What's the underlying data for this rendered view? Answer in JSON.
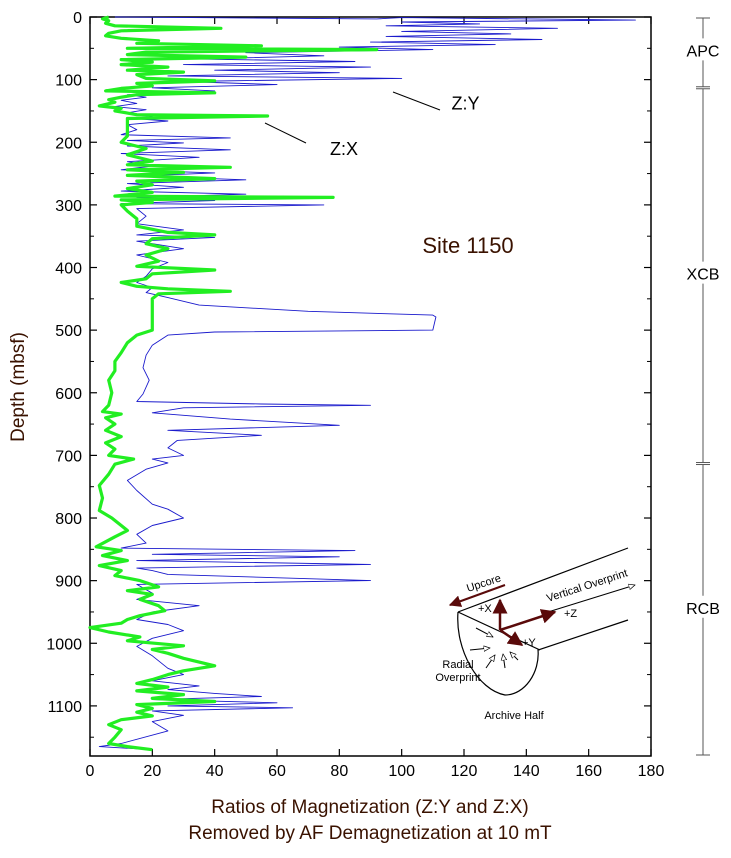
{
  "chart_data": {
    "type": "line",
    "title": "",
    "xlabel": [
      "Ratios of Magnetization (Z:Y and Z:X)",
      "Removed by AF Demagnetization at 10 mT"
    ],
    "ylabel": "Depth (mbsf)",
    "xlim": [
      0,
      180
    ],
    "ylim": [
      0,
      1180
    ],
    "y_inverted": true,
    "xticks": [
      0,
      20,
      40,
      60,
      80,
      100,
      120,
      140,
      160,
      180
    ],
    "yticks": [
      0,
      100,
      200,
      300,
      400,
      500,
      600,
      700,
      800,
      900,
      1000,
      1100
    ],
    "grid": false,
    "site_label": "Site 1150",
    "series": [
      {
        "name": "Z:Y",
        "color": "#1a1acc",
        "points": [
          [
            8,
            0
          ],
          [
            92,
            3
          ],
          [
            100,
            1
          ],
          [
            175,
            5
          ],
          [
            100,
            8
          ],
          [
            125,
            11
          ],
          [
            95,
            14
          ],
          [
            150,
            18
          ],
          [
            100,
            23
          ],
          [
            135,
            27
          ],
          [
            95,
            31
          ],
          [
            145,
            36
          ],
          [
            90,
            40
          ],
          [
            130,
            44
          ],
          [
            80,
            48
          ],
          [
            110,
            52
          ],
          [
            50,
            57
          ],
          [
            75,
            62
          ],
          [
            35,
            67
          ],
          [
            85,
            71
          ],
          [
            30,
            76
          ],
          [
            90,
            80
          ],
          [
            40,
            85
          ],
          [
            80,
            89
          ],
          [
            25,
            94
          ],
          [
            100,
            98
          ],
          [
            30,
            103
          ],
          [
            60,
            108
          ],
          [
            20,
            113
          ],
          [
            40,
            118
          ],
          [
            12,
            124
          ],
          [
            18,
            128
          ],
          [
            10,
            133
          ],
          [
            15,
            138
          ],
          [
            8,
            143
          ],
          [
            18,
            148
          ],
          [
            12,
            153
          ],
          [
            20,
            158
          ],
          [
            14,
            162
          ],
          [
            25,
            166
          ],
          [
            12,
            172
          ],
          [
            15,
            180
          ],
          [
            10,
            188
          ],
          [
            45,
            193
          ],
          [
            12,
            197
          ],
          [
            30,
            201
          ],
          [
            12,
            206
          ],
          [
            45,
            212
          ],
          [
            10,
            218
          ],
          [
            35,
            224
          ],
          [
            12,
            231
          ],
          [
            20,
            238
          ],
          [
            10,
            244
          ],
          [
            40,
            249
          ],
          [
            15,
            254
          ],
          [
            50,
            260
          ],
          [
            12,
            266
          ],
          [
            30,
            272
          ],
          [
            10,
            278
          ],
          [
            50,
            283
          ],
          [
            15,
            288
          ],
          [
            40,
            293
          ],
          [
            10,
            298
          ],
          [
            75,
            300
          ],
          [
            15,
            306
          ],
          [
            18,
            318
          ],
          [
            15,
            330
          ],
          [
            30,
            340
          ],
          [
            15,
            348
          ],
          [
            40,
            352
          ],
          [
            15,
            358
          ],
          [
            30,
            370
          ],
          [
            15,
            380
          ],
          [
            25,
            392
          ],
          [
            20,
            402
          ],
          [
            18,
            414
          ],
          [
            15,
            424
          ],
          [
            20,
            432
          ],
          [
            18,
            440
          ],
          [
            25,
            448
          ],
          [
            35,
            460
          ],
          [
            70,
            470
          ],
          [
            110,
            476
          ],
          [
            111,
            479
          ],
          [
            110,
            500
          ],
          [
            40,
            503
          ],
          [
            25,
            508
          ],
          [
            20,
            524
          ],
          [
            18,
            540
          ],
          [
            17,
            560
          ],
          [
            19,
            580
          ],
          [
            17,
            602
          ],
          [
            15,
            614
          ],
          [
            55,
            618
          ],
          [
            90,
            620
          ],
          [
            30,
            624
          ],
          [
            20,
            632
          ],
          [
            45,
            642
          ],
          [
            80,
            652
          ],
          [
            25,
            660
          ],
          [
            55,
            668
          ],
          [
            28,
            676
          ],
          [
            25,
            688
          ],
          [
            30,
            700
          ],
          [
            20,
            706
          ],
          [
            25,
            712
          ],
          [
            18,
            722
          ],
          [
            12,
            740
          ],
          [
            15,
            756
          ],
          [
            20,
            778
          ],
          [
            25,
            786
          ],
          [
            30,
            800
          ],
          [
            20,
            812
          ],
          [
            15,
            826
          ],
          [
            18,
            840
          ],
          [
            10,
            848
          ],
          [
            85,
            852
          ],
          [
            20,
            858
          ],
          [
            80,
            862
          ],
          [
            15,
            868
          ],
          [
            90,
            874
          ],
          [
            15,
            880
          ],
          [
            20,
            884
          ],
          [
            25,
            890
          ],
          [
            90,
            900
          ],
          [
            15,
            906
          ],
          [
            20,
            920
          ],
          [
            15,
            930
          ],
          [
            35,
            940
          ],
          [
            20,
            950
          ],
          [
            15,
            962
          ],
          [
            25,
            970
          ],
          [
            30,
            980
          ],
          [
            20,
            992
          ],
          [
            15,
            1005
          ],
          [
            20,
            1020
          ],
          [
            25,
            1040
          ],
          [
            30,
            1050
          ],
          [
            20,
            1060
          ],
          [
            35,
            1068
          ],
          [
            25,
            1074
          ],
          [
            40,
            1080
          ],
          [
            55,
            1085
          ],
          [
            20,
            1090
          ],
          [
            60,
            1095
          ],
          [
            25,
            1100
          ],
          [
            65,
            1103
          ],
          [
            20,
            1108
          ],
          [
            30,
            1115
          ],
          [
            20,
            1125
          ],
          [
            25,
            1140
          ],
          [
            10,
            1160
          ],
          [
            3,
            1165
          ],
          [
            20,
            1170
          ]
        ]
      },
      {
        "name": "Z:X",
        "color": "#22ee22",
        "points": [
          [
            6,
            0
          ],
          [
            4,
            3
          ],
          [
            6,
            6
          ],
          [
            5,
            10
          ],
          [
            8,
            14
          ],
          [
            42,
            18
          ],
          [
            10,
            22
          ],
          [
            6,
            26
          ],
          [
            5,
            30
          ],
          [
            10,
            34
          ],
          [
            22,
            38
          ],
          [
            15,
            42
          ],
          [
            55,
            46
          ],
          [
            12,
            50
          ],
          [
            92,
            52
          ],
          [
            18,
            56
          ],
          [
            12,
            60
          ],
          [
            50,
            64
          ],
          [
            10,
            68
          ],
          [
            20,
            72
          ],
          [
            10,
            76
          ],
          [
            25,
            80
          ],
          [
            12,
            85
          ],
          [
            30,
            88
          ],
          [
            15,
            92
          ],
          [
            18,
            98
          ],
          [
            40,
            102
          ],
          [
            15,
            106
          ],
          [
            20,
            110
          ],
          [
            10,
            114
          ],
          [
            5,
            118
          ],
          [
            40,
            121
          ],
          [
            15,
            124
          ],
          [
            10,
            128
          ],
          [
            6,
            132
          ],
          [
            8,
            136
          ],
          [
            3,
            142
          ],
          [
            10,
            146
          ],
          [
            8,
            150
          ],
          [
            15,
            156
          ],
          [
            57,
            158
          ],
          [
            12,
            162
          ],
          [
            12,
            170
          ],
          [
            12,
            180
          ],
          [
            12,
            190
          ],
          [
            10,
            200
          ],
          [
            18,
            210
          ],
          [
            12,
            220
          ],
          [
            20,
            230
          ],
          [
            12,
            236
          ],
          [
            45,
            240
          ],
          [
            12,
            244
          ],
          [
            30,
            248
          ],
          [
            12,
            253
          ],
          [
            40,
            258
          ],
          [
            15,
            262
          ],
          [
            20,
            268
          ],
          [
            12,
            274
          ],
          [
            20,
            280
          ],
          [
            8,
            286
          ],
          [
            78,
            288
          ],
          [
            10,
            292
          ],
          [
            20,
            296
          ],
          [
            10,
            300
          ],
          [
            12,
            310
          ],
          [
            15,
            322
          ],
          [
            15,
            334
          ],
          [
            25,
            344
          ],
          [
            40,
            348
          ],
          [
            20,
            354
          ],
          [
            18,
            362
          ],
          [
            25,
            370
          ],
          [
            18,
            380
          ],
          [
            22,
            390
          ],
          [
            15,
            398
          ],
          [
            40,
            404
          ],
          [
            20,
            410
          ],
          [
            18,
            418
          ],
          [
            10,
            424
          ],
          [
            15,
            430
          ],
          [
            25,
            434
          ],
          [
            45,
            438
          ],
          [
            22,
            442
          ],
          [
            20,
            450
          ],
          [
            20,
            462
          ],
          [
            20,
            478
          ],
          [
            20,
            490
          ],
          [
            20,
            500
          ],
          [
            15,
            508
          ],
          [
            12,
            520
          ],
          [
            10,
            536
          ],
          [
            8,
            550
          ],
          [
            8,
            565
          ],
          [
            6,
            580
          ],
          [
            7,
            600
          ],
          [
            6,
            620
          ],
          [
            4,
            630
          ],
          [
            10,
            634
          ],
          [
            5,
            640
          ],
          [
            8,
            650
          ],
          [
            5,
            660
          ],
          [
            10,
            670
          ],
          [
            5,
            680
          ],
          [
            8,
            690
          ],
          [
            6,
            700
          ],
          [
            14,
            706
          ],
          [
            8,
            714
          ],
          [
            6,
            730
          ],
          [
            3,
            748
          ],
          [
            4,
            768
          ],
          [
            3,
            788
          ],
          [
            7,
            800
          ],
          [
            10,
            812
          ],
          [
            12,
            820
          ],
          [
            8,
            830
          ],
          [
            2,
            846
          ],
          [
            10,
            852
          ],
          [
            4,
            860
          ],
          [
            12,
            868
          ],
          [
            3,
            876
          ],
          [
            10,
            884
          ],
          [
            8,
            892
          ],
          [
            16,
            900
          ],
          [
            22,
            910
          ],
          [
            12,
            916
          ],
          [
            20,
            922
          ],
          [
            16,
            930
          ],
          [
            22,
            940
          ],
          [
            24,
            948
          ],
          [
            16,
            956
          ],
          [
            12,
            962
          ],
          [
            10,
            968
          ],
          [
            0,
            975
          ],
          [
            6,
            982
          ],
          [
            16,
            990
          ],
          [
            12,
            996
          ],
          [
            30,
            1004
          ],
          [
            20,
            1010
          ],
          [
            25,
            1016
          ],
          [
            30,
            1024
          ],
          [
            35,
            1030
          ],
          [
            40,
            1036
          ],
          [
            30,
            1044
          ],
          [
            25,
            1050
          ],
          [
            20,
            1058
          ],
          [
            15,
            1064
          ],
          [
            25,
            1070
          ],
          [
            15,
            1076
          ],
          [
            30,
            1082
          ],
          [
            20,
            1088
          ],
          [
            40,
            1093
          ],
          [
            15,
            1098
          ],
          [
            20,
            1104
          ],
          [
            15,
            1110
          ],
          [
            20,
            1116
          ],
          [
            10,
            1122
          ],
          [
            6,
            1130
          ],
          [
            10,
            1138
          ],
          [
            8,
            1150
          ],
          [
            6,
            1160
          ],
          [
            12,
            1165
          ],
          [
            20,
            1170
          ]
        ]
      }
    ],
    "annotations": [
      {
        "text": "Z:Y",
        "x": 116,
        "y": 148
      },
      {
        "text": "Z:X",
        "x": 77,
        "y": 220
      }
    ],
    "units": [
      {
        "name": "APC",
        "top": 0,
        "bottom": 113
      },
      {
        "name": "XCB",
        "top": 113,
        "bottom": 713
      },
      {
        "name": "RCB",
        "top": 713,
        "bottom": 1180
      }
    ],
    "inset": {
      "labels": {
        "upcore": "Upcore",
        "vertical_overprint": "Vertical Overprint",
        "plus_x": "+X",
        "plus_y": "+Y",
        "plus_z": "+Z",
        "radial_overprint_1": "Radial",
        "radial_overprint_2": "Overprint",
        "archive_half": "Archive Half"
      }
    }
  }
}
